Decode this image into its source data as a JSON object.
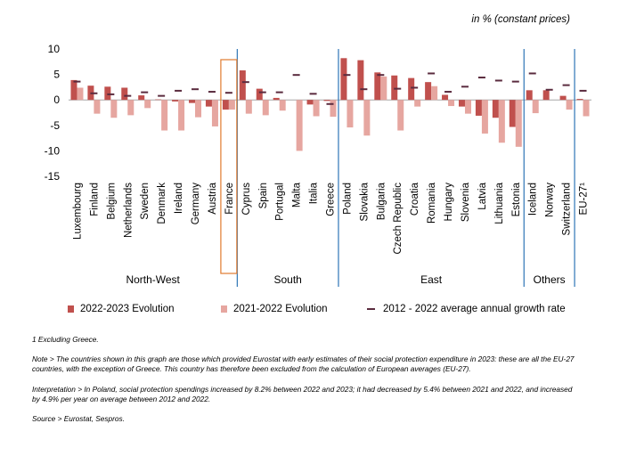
{
  "unit_label": "in % (constant prices)",
  "colors": {
    "evo_2023": "#C0504D",
    "evo_2022": "#E6A6A0",
    "avg_rate": "#5A2B3E",
    "separator": "#2E75B6",
    "highlight": "#E07A2E",
    "axis": "#999999"
  },
  "chart_data": {
    "type": "bar",
    "ylim": [
      -15,
      10
    ],
    "yticks": [
      -15,
      -10,
      -5,
      0,
      5,
      10
    ],
    "categories": [
      "Luxembourg",
      "Finland",
      "Belgium",
      "Netherlands",
      "Sweden",
      "Denmark",
      "Ireland",
      "Germany",
      "Austria",
      "France",
      "Cyprus",
      "Spain",
      "Portugal",
      "Malta",
      "Italia",
      "Greece",
      "Poland",
      "Slovakia",
      "Bulgaria",
      "Czech Republic",
      "Croatia",
      "Romania",
      "Hungary",
      "Slovenia",
      "Latvia",
      "Lithuania",
      "Estonia",
      "Iceland",
      "Norway",
      "Switzerland",
      "EU-27"
    ],
    "category_labels": [
      "Luxembourg",
      "Finland",
      "Belgium",
      "Netherlands",
      "Sweden",
      "Denmark",
      "Ireland",
      "Germany",
      "Austria",
      "France",
      "Cyprus",
      "Spain",
      "Portugal",
      "Malta",
      "Italia",
      "Greece",
      "Poland",
      "Slovakia",
      "Bulgaria",
      "Czech Republic",
      "Croatia",
      "Romania",
      "Hungary",
      "Slovenia",
      "Latvia",
      "Lithuania",
      "Estonia",
      "Iceland",
      "Norway",
      "Switzerland",
      "EU-27¹"
    ],
    "series": [
      {
        "name": "2022-2023 Evolution",
        "kind": "bar",
        "values": [
          3.9,
          2.8,
          2.6,
          2.4,
          0.9,
          0.1,
          -0.3,
          -0.6,
          -1.3,
          -1.9,
          5.8,
          2.2,
          0.4,
          0.0,
          -0.9,
          -0.2,
          8.2,
          7.8,
          5.4,
          4.8,
          4.3,
          3.5,
          1.0,
          -1.3,
          -3.1,
          -3.5,
          -5.3,
          1.9,
          1.9,
          0.8,
          0.2
        ]
      },
      {
        "name": "2021-2022 Evolution",
        "kind": "bar",
        "values": [
          2.4,
          -2.7,
          -3.5,
          -3.0,
          -1.6,
          -6.0,
          -6.0,
          -3.4,
          -5.2,
          -1.9,
          -2.7,
          -3.0,
          -2.1,
          -10.0,
          -3.2,
          -3.3,
          -5.4,
          -7.0,
          4.6,
          -6.0,
          -1.3,
          2.7,
          -1.2,
          -2.7,
          -6.6,
          -8.4,
          -9.2,
          -2.6,
          0.0,
          -1.9,
          -3.2
        ]
      },
      {
        "name": "2012 - 2022 average annual growth rate",
        "kind": "marker",
        "values": [
          3.6,
          1.3,
          1.1,
          0.8,
          1.5,
          0.8,
          1.8,
          2.1,
          1.6,
          1.4,
          3.5,
          1.5,
          1.5,
          4.9,
          1.2,
          -0.8,
          4.9,
          2.1,
          4.9,
          2.2,
          2.4,
          5.2,
          1.6,
          2.6,
          4.4,
          3.8,
          3.6,
          5.2,
          2.0,
          2.9,
          1.8
        ]
      }
    ],
    "groups": [
      {
        "name": "North-West",
        "from": 0,
        "to": 9
      },
      {
        "name": "South",
        "from": 10,
        "to": 15
      },
      {
        "name": "East",
        "from": 16,
        "to": 26
      },
      {
        "name": "Others",
        "from": 27,
        "to": 29
      }
    ],
    "highlighted_category": "France"
  },
  "legend": {
    "evo_2023": "2022-2023 Evolution",
    "evo_2022": "2021-2022 Evolution",
    "avg_rate": "2012 - 2022 average annual growth rate"
  },
  "notes": {
    "footnote": "1 Excluding Greece.",
    "note": "Note > The countries shown in this graph are those which provided Eurostat with early estimates of their social protection expenditure in 2023: these are all the EU-27 countries, with the exception of Greece. This country has therefore been excluded from the calculation of European averages (EU-27).",
    "interpretation": "Interpretation > In Poland, social protection spendings increased by 8.2% between 2022 and 2023; it had decreased by 5.4% between 2021 and 2022, and increased by 4.9% per year on average between 2012 and 2022.",
    "source": "Source > Eurostat, Sespros."
  }
}
